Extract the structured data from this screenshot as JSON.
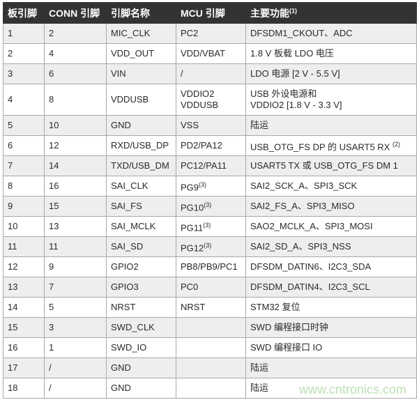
{
  "headers": [
    "板引脚",
    "CONN 引脚",
    "引脚名称",
    "MCU 引脚",
    "主要功能"
  ],
  "header_note": "(1)",
  "rows": [
    {
      "board": "1",
      "conn": "2",
      "name": "MIC_CLK",
      "mcu": "PC2",
      "mcu_note": "",
      "func": "DFSDM1_CKOUT、ADC",
      "func2": "",
      "func_note": ""
    },
    {
      "board": "2",
      "conn": "4",
      "name": "VDD_OUT",
      "mcu": "VDD/VBAT",
      "mcu_note": "",
      "func": "1.8 V 板载 LDO 电压",
      "func2": "",
      "func_note": ""
    },
    {
      "board": "3",
      "conn": "6",
      "name": "VIN",
      "mcu": "/",
      "mcu_note": "",
      "func": "LDO 电源 [2 V - 5.5 V]",
      "func2": "",
      "func_note": ""
    },
    {
      "board": "4",
      "conn": "8",
      "name": "VDDUSB",
      "mcu": "VDDIO2",
      "mcu2": "VDDUSB",
      "mcu_note": "",
      "func": "USB 外设电源和",
      "func2": "VDDIO2 [1.8 V - 3.3 V]",
      "func_note": ""
    },
    {
      "board": "5",
      "conn": "10",
      "name": "GND",
      "mcu": "VSS",
      "mcu_note": "",
      "func": "陆运",
      "func2": "",
      "func_note": ""
    },
    {
      "board": "6",
      "conn": "12",
      "name": "RXD/USB_DP",
      "mcu": "PD2/PA12",
      "mcu_note": "",
      "func": "USB_OTG_FS DP 的 USART5 RX ",
      "func2": "",
      "func_note": "(2)"
    },
    {
      "board": "7",
      "conn": "14",
      "name": "TXD/USB_DM",
      "mcu": "PC12/PA11",
      "mcu_note": "",
      "func": "USART5 TX 或 USB_OTG_FS DM 1",
      "func2": "",
      "func_note": ""
    },
    {
      "board": "8",
      "conn": "16",
      "name": "SAI_CLK",
      "mcu": "PG9",
      "mcu_note": "(3)",
      "func": "SAI2_SCK_A、SPI3_SCK",
      "func2": "",
      "func_note": ""
    },
    {
      "board": "9",
      "conn": "15",
      "name": "SAI_FS",
      "mcu": "PG10",
      "mcu_note": "(3)",
      "func": "SAI2_FS_A、SPI3_MISO",
      "func2": "",
      "func_note": ""
    },
    {
      "board": "10",
      "conn": "13",
      "name": "SAI_MCLK",
      "mcu": "PG11",
      "mcu_note": "(3)",
      "func": "SAO2_MCLK_A、SPI3_MOSI",
      "func2": "",
      "func_note": ""
    },
    {
      "board": "11",
      "conn": "11",
      "name": "SAI_SD",
      "mcu": "PG12",
      "mcu_note": "(3)",
      "func": "SAI2_SD_A、SPI3_NSS",
      "func2": "",
      "func_note": ""
    },
    {
      "board": "12",
      "conn": "9",
      "name": "GPIO2",
      "mcu": "PB8/PB9/PC1",
      "mcu_note": "",
      "func": "DFSDM_DATIN6、I2C3_SDA",
      "func2": "",
      "func_note": ""
    },
    {
      "board": "13",
      "conn": "7",
      "name": "GPIO3",
      "mcu": "PC0",
      "mcu_note": "",
      "func": "DFSDM_DATIN4、I2C3_SCL",
      "func2": "",
      "func_note": ""
    },
    {
      "board": "14",
      "conn": "5",
      "name": "NRST",
      "mcu": "NRST",
      "mcu_note": "",
      "func": "STM32 复位",
      "func2": "",
      "func_note": ""
    },
    {
      "board": "15",
      "conn": "3",
      "name": "SWD_CLK",
      "mcu": "",
      "mcu_note": "",
      "func": "SWD 编程接口时钟",
      "func2": "",
      "func_note": ""
    },
    {
      "board": "16",
      "conn": "1",
      "name": "SWD_IO",
      "mcu": "",
      "mcu_note": "",
      "func": "SWD 编程接口 IO",
      "func2": "",
      "func_note": ""
    },
    {
      "board": "17",
      "conn": "/",
      "name": "GND",
      "mcu": "",
      "mcu_note": "",
      "func": "陆运",
      "func2": "",
      "func_note": ""
    },
    {
      "board": "18",
      "conn": "/",
      "name": "GND",
      "mcu": "",
      "mcu_note": "",
      "func": "陆运",
      "func2": "",
      "func_note": ""
    }
  ],
  "watermark": "www.cntronics.com",
  "colors": {
    "header_bg": "#333333",
    "odd_row": "#eeeeee",
    "border": "#a8a8a8",
    "watermark": "#bfe0b8"
  }
}
